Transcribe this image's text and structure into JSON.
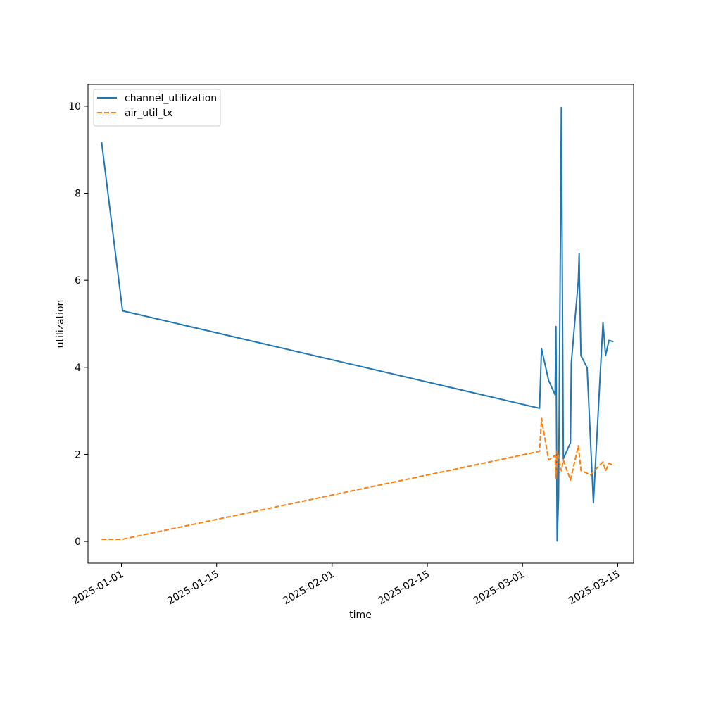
{
  "chart_data": {
    "type": "line",
    "title": "",
    "xlabel": "time",
    "ylabel": "utilization",
    "x_type": "date",
    "xlim": [
      "2024-12-27T02:00",
      "2025-03-17T08:00"
    ],
    "ylim": [
      -0.5,
      10.5
    ],
    "x_ticks": [
      "2025-01-01",
      "2025-01-15",
      "2025-02-01",
      "2025-02-15",
      "2025-03-01",
      "2025-03-15"
    ],
    "y_ticks": [
      0,
      2,
      4,
      6,
      8,
      10
    ],
    "grid": false,
    "legend_position": "upper left",
    "series": [
      {
        "name": "channel_utilization",
        "color": "#1f77b4",
        "dash": "solid",
        "points": [
          [
            "2024-12-29T02:00",
            9.18
          ],
          [
            "2025-01-01T04:00",
            5.3
          ],
          [
            "2025-03-03T12:00",
            3.06
          ],
          [
            "2025-03-03T19:00",
            4.43
          ],
          [
            "2025-03-04T20:00",
            3.7
          ],
          [
            "2025-03-05T19:00",
            3.37
          ],
          [
            "2025-03-05T22:00",
            4.94
          ],
          [
            "2025-03-06T02:00",
            0.01
          ],
          [
            "2025-03-06T07:00",
            1.0
          ],
          [
            "2025-03-06T17:00",
            9.97
          ],
          [
            "2025-03-07T00:00",
            1.9
          ],
          [
            "2025-03-08T01:00",
            2.27
          ],
          [
            "2025-03-08T04:00",
            4.1
          ],
          [
            "2025-03-09T05:00",
            6.0
          ],
          [
            "2025-03-09T08:00",
            6.62
          ],
          [
            "2025-03-09T09:00",
            6.0
          ],
          [
            "2025-03-09T14:00",
            4.27
          ],
          [
            "2025-03-10T12:00",
            3.99
          ],
          [
            "2025-03-11T10:00",
            0.89
          ],
          [
            "2025-03-12T09:00",
            3.7
          ],
          [
            "2025-03-12T20:00",
            5.03
          ],
          [
            "2025-03-13T05:00",
            4.27
          ],
          [
            "2025-03-13T17:00",
            4.62
          ],
          [
            "2025-03-14T09:00",
            4.59
          ]
        ]
      },
      {
        "name": "air_util_tx",
        "color": "#ff7f0e",
        "dash": "dashed",
        "points": [
          [
            "2024-12-29T02:00",
            0.05
          ],
          [
            "2025-01-01T04:00",
            0.05
          ],
          [
            "2025-03-03T12:00",
            2.07
          ],
          [
            "2025-03-03T19:00",
            2.83
          ],
          [
            "2025-03-04T20:00",
            1.87
          ],
          [
            "2025-03-05T19:00",
            1.98
          ],
          [
            "2025-03-05T22:00",
            1.46
          ],
          [
            "2025-03-06T02:00",
            2.09
          ],
          [
            "2025-03-06T17:00",
            1.62
          ],
          [
            "2025-03-07T00:00",
            1.87
          ],
          [
            "2025-03-08T01:00",
            1.41
          ],
          [
            "2025-03-09T05:00",
            2.2
          ],
          [
            "2025-03-09T14:00",
            1.63
          ],
          [
            "2025-03-11T00:00",
            1.53
          ],
          [
            "2025-03-12T20:00",
            1.83
          ],
          [
            "2025-03-13T05:00",
            1.62
          ],
          [
            "2025-03-13T17:00",
            1.8
          ],
          [
            "2025-03-14T09:00",
            1.74
          ]
        ]
      }
    ]
  }
}
